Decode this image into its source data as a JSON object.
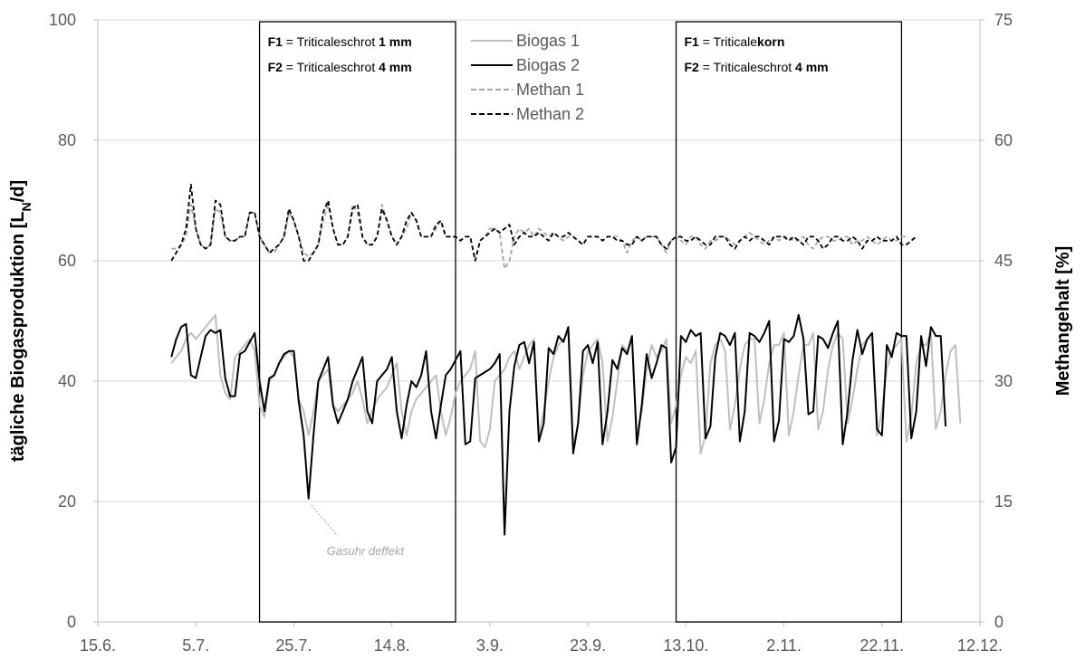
{
  "chart_data": {
    "type": "line",
    "x_axis": {
      "type": "date",
      "ticks": [
        "15.6.",
        "5.7.",
        "25.7.",
        "14.8.",
        "3.9.",
        "23.9.",
        "13.10.",
        "2.11.",
        "22.11.",
        "12.12."
      ],
      "range": [
        "15.6.",
        "12.12."
      ],
      "step_days": 20,
      "title": ""
    },
    "y_axis_left": {
      "title": "tägliche Biogasproduktion [L",
      "title_subscript": "N",
      "title_suffix": "/d]",
      "ylim": [
        0,
        100
      ],
      "ticks": [
        "0",
        "20",
        "40",
        "60",
        "80",
        "100"
      ]
    },
    "y_axis_right": {
      "title": "Methangehalt [%]",
      "ylim": [
        0,
        75
      ],
      "ticks": [
        "0",
        "15",
        "30",
        "45",
        "60",
        "75"
      ]
    },
    "grid": true,
    "grid_axis": "y",
    "legend": {
      "placement": "top-center",
      "entries": [
        {
          "label": "Biogas 1",
          "color": "#bfbfbf",
          "dash": "solid"
        },
        {
          "label": "Biogas 2",
          "color": "#000000",
          "dash": "solid"
        },
        {
          "label": "Methan 1",
          "color": "#a6a6a6",
          "dash": "dashed"
        },
        {
          "label": "Methan 2",
          "color": "#000000",
          "dash": "dashed"
        }
      ]
    },
    "annotation_boxes": [
      {
        "from": "18.7.",
        "to": "27.8.",
        "lines": [
          {
            "prefix": "F1",
            "text": " = Triticaleschrot ",
            "bold": "1 mm"
          },
          {
            "prefix": "F2",
            "text": " = Triticaleschrot ",
            "bold": "4 mm"
          }
        ]
      },
      {
        "from": "11.10.",
        "to": "26.11.",
        "lines": [
          {
            "prefix": "F1",
            "text": " = Triticale",
            "bold": "korn"
          },
          {
            "prefix": "F2",
            "text": " = Triticaleschrot ",
            "bold": "4 mm"
          }
        ]
      }
    ],
    "annotations": [
      {
        "text": "Gasuhr deffekt",
        "points_to": {
          "x": "28.7.",
          "y": 20
        }
      }
    ],
    "series": [
      {
        "name": "Biogas 1",
        "axis": "left",
        "color": "#bfbfbf",
        "dash": "solid",
        "x_start": "30.6.",
        "x_step_days": 1,
        "values": [
          43,
          44,
          45,
          47,
          48,
          47,
          48,
          49,
          50,
          51,
          41,
          38,
          37,
          44,
          45,
          46,
          47,
          45,
          36,
          34,
          40,
          41,
          43,
          44,
          45,
          44,
          37,
          35,
          31,
          35,
          40,
          41,
          42,
          36,
          35,
          36,
          37,
          38,
          40,
          37,
          33,
          35,
          37,
          38,
          39,
          41,
          43,
          35,
          31,
          35,
          37,
          38,
          39,
          40,
          41,
          35,
          31,
          34,
          38,
          40,
          41,
          42,
          45,
          30,
          29,
          32,
          40,
          41,
          42,
          44,
          45,
          42,
          44,
          46,
          47,
          31,
          35,
          40,
          44,
          46,
          47,
          48,
          29,
          33,
          41,
          45,
          46,
          47,
          43,
          30,
          34,
          40,
          46,
          45,
          47,
          31,
          35,
          42,
          46,
          44,
          45,
          47,
          33,
          36,
          41,
          44,
          43,
          45,
          28,
          31,
          43,
          46,
          47,
          45,
          32,
          36,
          42,
          46,
          47,
          47,
          33,
          37,
          43,
          46,
          46,
          48,
          31,
          35,
          41,
          46,
          46,
          48,
          32,
          35,
          42,
          46,
          48,
          47,
          33,
          37,
          42,
          46,
          47,
          47,
          31,
          35,
          42,
          45,
          46,
          47,
          30,
          34,
          43,
          46,
          46,
          48,
          32,
          35,
          41,
          45,
          46,
          33
        ],
        "labels": []
      },
      {
        "name": "Biogas 2",
        "axis": "left",
        "color": "#000000",
        "dash": "solid",
        "x_start": "30.6.",
        "x_step_days": 1,
        "values": [
          44,
          47,
          49,
          49.5,
          41,
          40.5,
          44,
          47.5,
          48.5,
          48,
          48.5,
          40.5,
          37.5,
          37.5,
          44.5,
          45,
          46.5,
          48,
          40,
          35,
          40.5,
          41,
          43,
          44.5,
          45,
          45,
          36.5,
          31,
          20.5,
          31,
          40,
          42,
          44,
          36,
          33,
          35,
          37,
          40,
          42,
          44,
          35,
          33,
          40,
          41,
          42,
          44,
          35,
          30.5,
          36,
          40,
          39,
          41,
          45,
          35,
          30.5,
          36,
          41,
          42,
          43.5,
          45,
          29.5,
          30,
          40.5,
          41,
          41.5,
          42,
          43,
          44.5,
          14.5,
          35,
          42.5,
          46,
          46.5,
          43,
          46.5,
          30,
          33,
          45.5,
          44.5,
          47.5,
          46.5,
          49,
          28,
          33,
          45,
          46,
          43,
          46.5,
          29.5,
          35,
          43.5,
          42,
          45.5,
          44.5,
          47.5,
          29.5,
          36,
          44.5,
          40.5,
          43,
          46,
          45.5,
          26.5,
          29,
          47.5,
          46.5,
          48.5,
          47.5,
          48,
          30.5,
          32.5,
          44,
          48,
          47.5,
          46,
          48,
          30,
          35,
          48,
          47.5,
          46.5,
          48,
          50,
          30,
          33.5,
          47,
          46.5,
          47.5,
          51,
          47,
          34.5,
          35,
          47.5,
          47,
          45.5,
          48,
          50,
          29.5,
          35,
          43.5,
          48.5,
          44.5,
          47,
          48,
          32,
          31,
          46,
          44,
          48,
          47.5,
          47.5,
          30.5,
          35,
          47.5,
          42.5,
          49,
          47.5,
          47.5,
          32.5
        ],
        "labels": []
      },
      {
        "name": "Methan 1",
        "axis": "right",
        "color": "#a6a6a6",
        "dash": "dashed",
        "x_start": "30.6.",
        "x_step_days": 1,
        "values": [
          46.5,
          46.5,
          47,
          48,
          52,
          49,
          47,
          46.5,
          47,
          51.5,
          51,
          48,
          47.5,
          47.5,
          48,
          48,
          51,
          51,
          48,
          47,
          46,
          46,
          47,
          48,
          51,
          50,
          48,
          46,
          45.5,
          46,
          47,
          50,
          52,
          49,
          47,
          47,
          48,
          52,
          51,
          48,
          47,
          47,
          48,
          52,
          50,
          48,
          47,
          48,
          49,
          51,
          50,
          48,
          48,
          48,
          49,
          50,
          48,
          48,
          48,
          47.5,
          48,
          48,
          45,
          47.5,
          48,
          49,
          49,
          48.5,
          44,
          45,
          48,
          49,
          48.5,
          49,
          48,
          49,
          48.5,
          48,
          48.5,
          48,
          47.5,
          48,
          48,
          47.5,
          47,
          48,
          48,
          48,
          47.5,
          48,
          48,
          48,
          47.5,
          46,
          47.5,
          48,
          47.5,
          48,
          48,
          48,
          47,
          46,
          47.5,
          48,
          47.5,
          47,
          48,
          48,
          47,
          46.5,
          47.5,
          47.5,
          48,
          48,
          47.5,
          47,
          47.5,
          48,
          48.5,
          48,
          47.5,
          47,
          47.5,
          48,
          47.5,
          48,
          48,
          47.5,
          47.5,
          48,
          47,
          46.5,
          47.5,
          48,
          48,
          47.5,
          47.5,
          48,
          48,
          47,
          47.5,
          47.5,
          48,
          47.5,
          47,
          47.5,
          48,
          47.5,
          47.5,
          48,
          48
        ],
        "labels": []
      },
      {
        "name": "Methan 2",
        "axis": "right",
        "color": "#000000",
        "dash": "dashed",
        "x_start": "30.6.",
        "x_step_days": 1,
        "values": [
          45,
          46,
          47,
          49,
          54.5,
          49,
          47,
          46.5,
          47,
          52.5,
          52,
          48,
          47.5,
          47.5,
          48,
          48,
          51,
          51,
          48,
          47,
          46,
          46.5,
          47,
          48,
          51.5,
          50,
          48,
          45,
          45,
          46,
          47,
          51,
          52.5,
          49,
          47,
          47,
          48,
          51.5,
          52,
          48,
          47,
          47,
          48,
          51.5,
          50,
          48,
          47,
          48,
          50,
          51,
          50,
          48,
          48,
          48,
          49.5,
          50,
          48,
          48,
          48,
          47.5,
          48,
          48,
          45,
          47.5,
          48,
          48.5,
          49,
          48.5,
          49,
          49.5,
          47,
          48,
          48.5,
          48,
          48,
          48.5,
          48,
          47.5,
          48.5,
          48,
          48,
          48.5,
          48,
          47.5,
          47,
          48,
          48,
          48,
          47.5,
          48,
          48,
          47.5,
          47.5,
          47,
          47,
          48,
          47.5,
          48,
          48,
          48,
          47,
          46.5,
          47.5,
          48,
          48,
          47.5,
          47.5,
          48,
          47.5,
          47,
          47,
          48,
          48,
          48,
          47,
          46.5,
          47.5,
          48,
          47.5,
          48,
          48,
          47.5,
          47,
          48,
          48,
          48,
          47.5,
          48,
          47.5,
          47,
          48,
          48,
          47.5,
          46.5,
          47,
          48,
          48,
          47.5,
          47.5,
          48,
          47.5,
          46.5,
          47.5,
          47.5,
          48,
          47.5,
          47.5,
          47.5,
          48,
          47,
          47,
          47.5,
          48
        ],
        "labels": []
      }
    ]
  }
}
